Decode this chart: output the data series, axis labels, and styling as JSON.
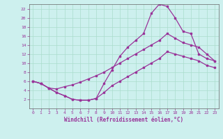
{
  "xlabel": "Windchill (Refroidissement éolien,°C)",
  "bg_color": "#cdf0ee",
  "grid_color": "#aaddcc",
  "line_color": "#993399",
  "xlim": [
    -0.5,
    23.5
  ],
  "ylim": [
    0,
    23
  ],
  "xticks": [
    0,
    1,
    2,
    3,
    4,
    5,
    6,
    7,
    8,
    9,
    10,
    11,
    12,
    13,
    14,
    15,
    16,
    17,
    18,
    19,
    20,
    21,
    22,
    23
  ],
  "yticks": [
    2,
    4,
    6,
    8,
    10,
    12,
    14,
    16,
    18,
    20,
    22
  ],
  "curve_top_x": [
    0,
    1,
    2,
    3,
    4,
    5,
    6,
    7,
    8,
    9,
    10,
    11,
    12,
    13,
    14,
    15,
    16,
    17,
    18,
    19,
    20,
    21,
    22,
    23
  ],
  "curve_top_y": [
    6.0,
    5.5,
    4.5,
    3.5,
    2.8,
    2.0,
    1.8,
    1.8,
    2.2,
    5.5,
    8.5,
    11.5,
    13.5,
    15.0,
    16.5,
    21.0,
    23.0,
    22.5,
    20.0,
    17.0,
    16.5,
    12.0,
    11.0,
    10.5
  ],
  "curve_mid_x": [
    0,
    1,
    2,
    3,
    4,
    5,
    6,
    7,
    8,
    9,
    10,
    11,
    12,
    13,
    14,
    15,
    16,
    17,
    18,
    19,
    20,
    21,
    22,
    23
  ],
  "curve_mid_y": [
    6.0,
    5.5,
    4.5,
    4.3,
    4.8,
    5.2,
    5.8,
    6.5,
    7.2,
    8.0,
    9.0,
    10.0,
    11.0,
    12.0,
    13.0,
    14.0,
    15.0,
    16.5,
    15.5,
    14.5,
    14.0,
    13.5,
    12.0,
    10.5
  ],
  "curve_bot_x": [
    0,
    1,
    2,
    3,
    4,
    5,
    6,
    7,
    8,
    9,
    10,
    11,
    12,
    13,
    14,
    15,
    16,
    17,
    18,
    19,
    20,
    21,
    22,
    23
  ],
  "curve_bot_y": [
    6.0,
    5.5,
    4.5,
    3.5,
    2.8,
    2.0,
    1.8,
    1.8,
    2.2,
    3.5,
    5.0,
    6.0,
    7.0,
    8.0,
    9.0,
    10.0,
    11.0,
    12.5,
    12.0,
    11.5,
    11.0,
    10.5,
    9.5,
    9.0
  ]
}
